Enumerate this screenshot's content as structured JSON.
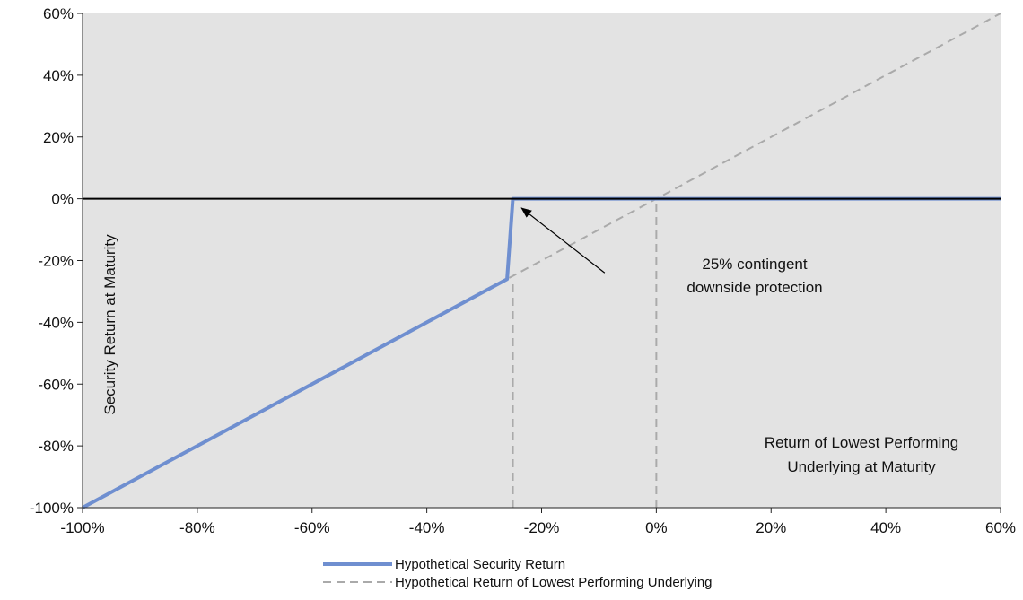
{
  "chart_data": {
    "type": "line",
    "title": "",
    "xlabel": "Return of Lowest Performing Underlying at Maturity",
    "ylabel": "Security Return at Maturity",
    "xlim": [
      -100,
      60
    ],
    "ylim": [
      -100,
      60
    ],
    "x_ticks": [
      "-100%",
      "-80%",
      "-60%",
      "-40%",
      "-20%",
      "0%",
      "20%",
      "40%",
      "60%"
    ],
    "y_ticks": [
      "60%",
      "40%",
      "20%",
      "0%",
      "-20%",
      "-40%",
      "-60%",
      "-80%",
      "-100%"
    ],
    "x_tick_values": [
      -100,
      -80,
      -60,
      -40,
      -20,
      0,
      20,
      40,
      60
    ],
    "y_tick_values": [
      60,
      40,
      20,
      0,
      -20,
      -40,
      -60,
      -80,
      -100
    ],
    "grid": false,
    "background_color": "#e3e3e3",
    "legend_position": "bottom",
    "series": [
      {
        "name": "Hypothetical Security Return",
        "style": "solid",
        "color": "#6f8fd0",
        "x": [
          -100,
          -26,
          -25,
          60
        ],
        "y": [
          -100,
          -26,
          0,
          0
        ]
      },
      {
        "name": "Hypothetical Return of Lowest Performing Underlying",
        "style": "dashed",
        "color": "#aaaaaa",
        "x": [
          -100,
          60
        ],
        "y": [
          -100,
          60
        ]
      }
    ],
    "reference_lines": [
      {
        "type": "horizontal",
        "y": 0,
        "color": "#000000",
        "style": "solid"
      },
      {
        "type": "vertical",
        "x": -25,
        "y_from": -100,
        "y_to": -26,
        "color": "#aaaaaa",
        "style": "dashed"
      },
      {
        "type": "vertical",
        "x": 0,
        "y_from": -100,
        "y_to": 0,
        "color": "#aaaaaa",
        "style": "dashed"
      }
    ],
    "annotations": [
      {
        "lines": [
          "25% contingent",
          "downside protection"
        ],
        "arrow_from": [
          -9,
          -24
        ],
        "arrow_to": [
          -23.5,
          -3
        ]
      }
    ]
  }
}
